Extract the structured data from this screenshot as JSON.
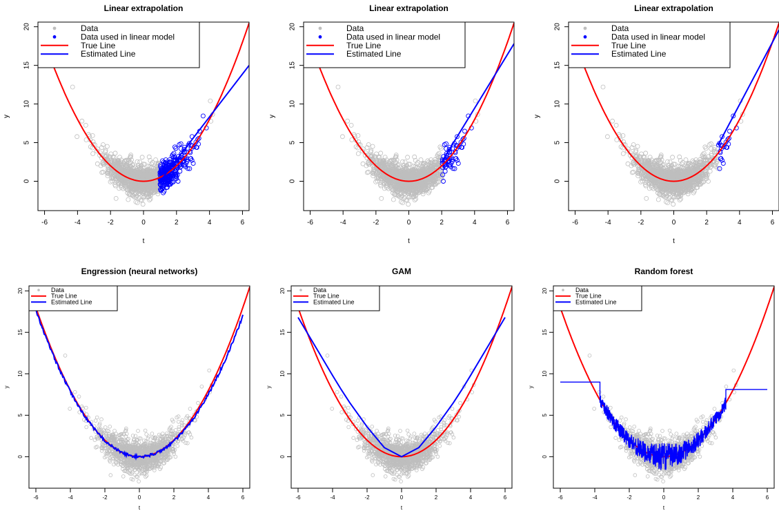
{
  "chart_data": [
    {
      "type": "scatter",
      "title": "Linear extrapolation",
      "xlabel": "t",
      "ylabel": "y",
      "xlim": [
        -6.4,
        6.4
      ],
      "ylim": [
        -3.8,
        20.6
      ],
      "xticks": [
        -6,
        -4,
        -2,
        0,
        2,
        4,
        6
      ],
      "yticks": [
        0,
        5,
        10,
        15,
        20
      ],
      "legend_position": "top-left",
      "legend": [
        "Data",
        "Data used in linear model",
        "True Line",
        "Estimated Line"
      ],
      "subset_range": [
        1,
        4
      ],
      "true_line": "y = t^2/2",
      "estimated_line": {
        "x": [
          1,
          6.4
        ],
        "y": [
          0,
          15.0
        ]
      }
    },
    {
      "type": "scatter",
      "title": "Linear extrapolation",
      "xlabel": "t",
      "ylabel": "y",
      "xlim": [
        -6.4,
        6.4
      ],
      "ylim": [
        -3.8,
        20.6
      ],
      "xticks": [
        -6,
        -4,
        -2,
        0,
        2,
        4,
        6
      ],
      "yticks": [
        0,
        5,
        10,
        15,
        20
      ],
      "legend_position": "top-left",
      "legend": [
        "Data",
        "Data used in linear model",
        "True Line",
        "Estimated Line"
      ],
      "subset_range": [
        2,
        4
      ],
      "true_line": "y = t^2/2",
      "estimated_line": {
        "x": [
          2,
          6.4
        ],
        "y": [
          2.5,
          17.8
        ]
      }
    },
    {
      "type": "scatter",
      "title": "Linear extrapolation",
      "xlabel": "t",
      "ylabel": "y",
      "xlim": [
        -6.4,
        6.4
      ],
      "ylim": [
        -3.8,
        20.6
      ],
      "xticks": [
        -6,
        -4,
        -2,
        0,
        2,
        4,
        6
      ],
      "yticks": [
        0,
        5,
        10,
        15,
        20
      ],
      "legend_position": "top-left",
      "legend": [
        "Data",
        "Data used in linear model",
        "True Line",
        "Estimated Line"
      ],
      "subset_range": [
        2.7,
        4
      ],
      "true_line": "y = t^2/2",
      "estimated_line": {
        "x": [
          2.7,
          6.4
        ],
        "y": [
          4.7,
          19.6
        ]
      }
    },
    {
      "type": "scatter",
      "title": "Engression (neural networks)",
      "xlabel": "t",
      "ylabel": "y",
      "xlim": [
        -6.4,
        6.4
      ],
      "ylim": [
        -3.8,
        20.6
      ],
      "xticks": [
        -6,
        -4,
        -2,
        0,
        2,
        4,
        6
      ],
      "yticks": [
        0,
        5,
        10,
        15,
        20
      ],
      "legend_position": "top-left",
      "legend": [
        "Data",
        "True Line",
        "Estimated Line"
      ],
      "true_line": "y = t^2/2",
      "estimated_line": {
        "x": [
          -6,
          -5,
          -4,
          -3,
          -2,
          -1,
          0,
          1,
          2,
          3,
          4,
          5,
          6
        ],
        "y": [
          17.5,
          13.6,
          10.0,
          6.8,
          3.9,
          1.4,
          0,
          1.2,
          3.6,
          6.6,
          9.8,
          13.4,
          17.0
        ]
      }
    },
    {
      "type": "scatter",
      "title": "GAM",
      "xlabel": "t",
      "ylabel": "y",
      "xlim": [
        -6.4,
        6.4
      ],
      "ylim": [
        -3.8,
        20.6
      ],
      "xticks": [
        -6,
        -4,
        -2,
        0,
        2,
        4,
        6
      ],
      "yticks": [
        0,
        5,
        10,
        15,
        20
      ],
      "legend_position": "top-left",
      "legend": [
        "Data",
        "True Line",
        "Estimated Line"
      ],
      "true_line": "y = t^2/2",
      "estimated_line": {
        "x": [
          -6,
          -5,
          -4,
          -3.5,
          -3,
          -2,
          -1,
          0,
          1,
          2,
          3,
          3.5,
          4,
          5,
          6
        ],
        "y": [
          16.8,
          13.3,
          9.8,
          8.1,
          6.5,
          3.6,
          1.1,
          0,
          1.1,
          3.6,
          6.5,
          8.1,
          9.8,
          13.3,
          16.8
        ]
      }
    },
    {
      "type": "scatter",
      "title": "Random forest",
      "xlabel": "t",
      "ylabel": "y",
      "xlim": [
        -6.4,
        6.4
      ],
      "ylim": [
        -3.8,
        20.6
      ],
      "xticks": [
        -6,
        -4,
        -2,
        0,
        2,
        4,
        6
      ],
      "yticks": [
        0,
        5,
        10,
        15,
        20
      ],
      "legend_position": "top-left",
      "legend": [
        "Data",
        "True Line",
        "Estimated Line"
      ],
      "true_line": "y = t^2/2",
      "estimated_line": {
        "left_plateau": 9.0,
        "left_plateau_until": -3.7,
        "right_plateau": 8.1,
        "right_plateau_from": 3.6,
        "x_range": [
          -6,
          6
        ]
      }
    }
  ],
  "colors": {
    "data": "#bebebe",
    "data_used": "#0000ff",
    "true_line": "#ff0000",
    "estimated_line": "#0000ff"
  }
}
